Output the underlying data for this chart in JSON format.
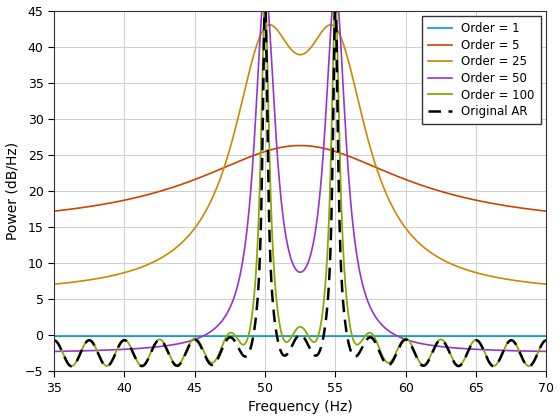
{
  "title": "",
  "xlabel": "Frequency (Hz)",
  "ylabel": "Power (dB/Hz)",
  "xlim": [
    35,
    70
  ],
  "ylim": [
    -5,
    45
  ],
  "xticks": [
    35,
    40,
    45,
    50,
    55,
    60,
    65,
    70
  ],
  "yticks": [
    -5,
    0,
    5,
    10,
    15,
    20,
    25,
    30,
    35,
    40,
    45
  ],
  "n_points": 4000,
  "colors": {
    "order1": "#0099CC",
    "order5": "#CC4400",
    "order25": "#CC8800",
    "order50": "#9933CC",
    "order100": "#88AA00",
    "original": "#000000"
  },
  "legend_labels": [
    "Order = 1",
    "Order = 5",
    "Order = 25",
    "Order = 50",
    "Order = 100",
    "Original AR"
  ],
  "background_color": "#ffffff",
  "grid_color": "#c8c8c8"
}
